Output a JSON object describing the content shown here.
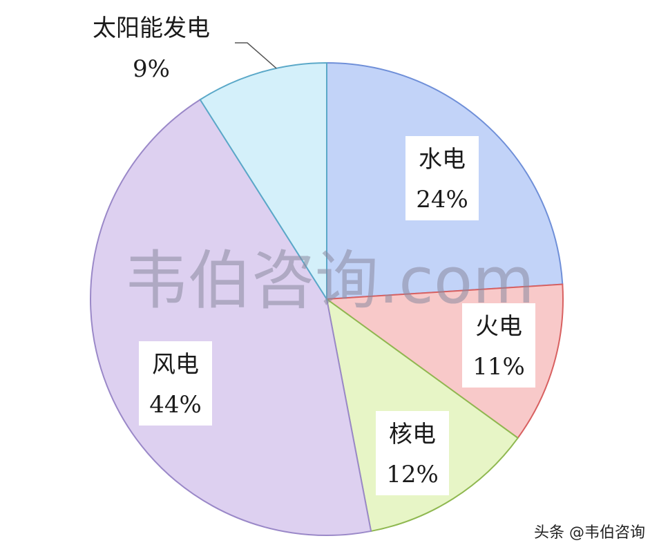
{
  "chart_data": {
    "type": "pie",
    "title": "",
    "slices": [
      {
        "label": "水电",
        "value": 24,
        "value_label": "24%",
        "color": "#c2d3f8",
        "edge": "#6f8fd8"
      },
      {
        "label": "火电",
        "value": 11,
        "value_label": "11%",
        "color": "#f8c9c9",
        "edge": "#d86060"
      },
      {
        "label": "核电",
        "value": 12,
        "value_label": "12%",
        "color": "#e7f5c6",
        "edge": "#8fb850"
      },
      {
        "label": "风电",
        "value": 44,
        "value_label": "44%",
        "color": "#ddd0f0",
        "edge": "#9a88c8"
      },
      {
        "label": "太阳能发电",
        "value": 9,
        "value_label": "9%",
        "color": "#d4f0fa",
        "edge": "#5aa8c8"
      }
    ]
  },
  "watermark": "韦伯咨询.com",
  "footer": "头条 @韦伯咨询"
}
